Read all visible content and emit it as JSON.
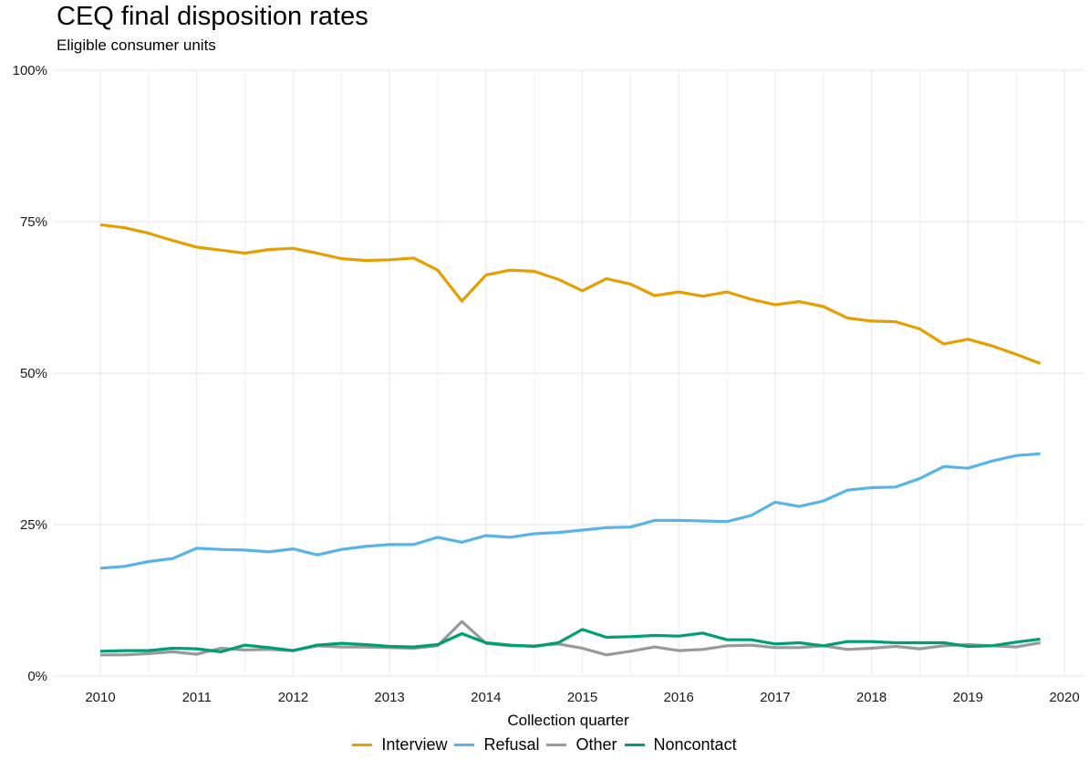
{
  "chart_data": {
    "type": "line",
    "title": "CEQ final disposition rates",
    "subtitle": "Eligible consumer units",
    "xlabel": "Collection quarter",
    "ylabel": "",
    "xlim": [
      2009.8,
      2020.2
    ],
    "ylim": [
      0,
      100
    ],
    "y_ticks": [
      0,
      25,
      50,
      75,
      100
    ],
    "y_tick_labels": [
      "0%",
      "25%",
      "50%",
      "75%",
      "100%"
    ],
    "x_ticks": [
      2010,
      2011,
      2012,
      2013,
      2014,
      2015,
      2016,
      2017,
      2018,
      2019,
      2020
    ],
    "x_tick_labels": [
      "2010",
      "2011",
      "2012",
      "2013",
      "2014",
      "2015",
      "2016",
      "2017",
      "2018",
      "2019",
      "2020"
    ],
    "grid": true,
    "legend_position": "bottom",
    "x": [
      2010.0,
      2010.25,
      2010.5,
      2010.75,
      2011.0,
      2011.25,
      2011.5,
      2011.75,
      2012.0,
      2012.25,
      2012.5,
      2012.75,
      2013.0,
      2013.25,
      2013.5,
      2013.75,
      2014.0,
      2014.25,
      2014.5,
      2014.75,
      2015.0,
      2015.25,
      2015.5,
      2015.75,
      2016.0,
      2016.25,
      2016.5,
      2016.75,
      2017.0,
      2017.25,
      2017.5,
      2017.75,
      2018.0,
      2018.25,
      2018.5,
      2018.75,
      2019.0,
      2019.25,
      2019.5,
      2019.75
    ],
    "series": [
      {
        "name": "Interview",
        "color": "#E69F00",
        "values": [
          74.5,
          74.0,
          73.1,
          71.9,
          70.8,
          70.3,
          69.8,
          70.4,
          70.6,
          69.8,
          68.9,
          68.6,
          68.7,
          69.0,
          67.0,
          61.9,
          66.2,
          67.0,
          66.8,
          65.5,
          63.6,
          65.6,
          64.7,
          62.8,
          63.4,
          62.7,
          63.4,
          62.2,
          61.3,
          61.8,
          61.0,
          59.1,
          58.6,
          58.5,
          57.3,
          54.8,
          55.6,
          54.5,
          53.1,
          51.6
        ]
      },
      {
        "name": "Refusal",
        "color": "#56B4E9",
        "values": [
          17.8,
          18.1,
          18.9,
          19.4,
          21.1,
          20.9,
          20.8,
          20.5,
          21.0,
          20.0,
          20.9,
          21.4,
          21.7,
          21.7,
          22.9,
          22.1,
          23.2,
          22.9,
          23.5,
          23.7,
          24.1,
          24.5,
          24.6,
          25.7,
          25.7,
          25.6,
          25.5,
          26.5,
          28.7,
          28.0,
          28.9,
          30.7,
          31.1,
          31.2,
          32.6,
          34.6,
          34.3,
          35.5,
          36.4,
          36.7
        ]
      },
      {
        "name": "Other",
        "color": "#999999",
        "values": [
          3.5,
          3.5,
          3.7,
          4.0,
          3.6,
          4.6,
          4.3,
          4.4,
          4.2,
          5.0,
          4.8,
          4.8,
          4.7,
          4.6,
          5.0,
          9.0,
          5.4,
          5.0,
          5.0,
          5.3,
          4.6,
          3.5,
          4.1,
          4.8,
          4.2,
          4.4,
          5.0,
          5.1,
          4.7,
          4.7,
          5.0,
          4.4,
          4.6,
          4.9,
          4.5,
          5.0,
          5.2,
          5.0,
          4.8,
          5.5
        ]
      },
      {
        "name": "Noncontact",
        "color": "#009E73",
        "values": [
          4.1,
          4.2,
          4.2,
          4.6,
          4.5,
          4.0,
          5.1,
          4.7,
          4.2,
          5.1,
          5.4,
          5.2,
          4.9,
          4.8,
          5.2,
          7.0,
          5.5,
          5.1,
          4.9,
          5.5,
          7.7,
          6.4,
          6.5,
          6.7,
          6.6,
          7.1,
          6.0,
          6.0,
          5.3,
          5.5,
          5.0,
          5.7,
          5.7,
          5.5,
          5.5,
          5.5,
          4.9,
          5.0,
          5.6,
          6.1
        ]
      }
    ]
  }
}
